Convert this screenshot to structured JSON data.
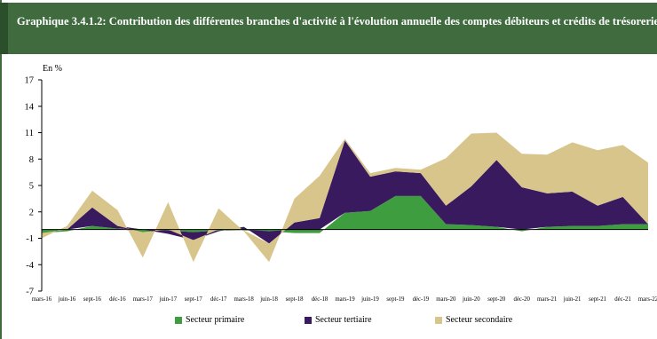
{
  "title": "Graphique 3.4.1.2: Contribution des différentes branches d'activité à l'évolution annuelle des comptes débiteurs et crédits de trésorerie",
  "chart_data": {
    "type": "area",
    "unit_label": "En %",
    "categories": [
      "mars-16",
      "juin-16",
      "sept-16",
      "déc-16",
      "mars-17",
      "juin-17",
      "sept-17",
      "déc-17",
      "mars-18",
      "juin-18",
      "sept-18",
      "déc-18",
      "mars-19",
      "juin-19",
      "sept-19",
      "déc-19",
      "mars-20",
      "juin-20",
      "sept-20",
      "déc-20",
      "mars-21",
      "juin-21",
      "sept-21",
      "déc-21",
      "mars-22"
    ],
    "ylim": [
      -7,
      17
    ],
    "yticks": [
      -7,
      -4,
      -1,
      2,
      5,
      8,
      11,
      14,
      17
    ],
    "series": [
      {
        "name": "Secteur primaire",
        "color": "#3e9d3e",
        "values": [
          -0.4,
          -0.2,
          0.4,
          0.1,
          -0.3,
          -0.1,
          -0.3,
          -0.1,
          -0.1,
          -0.2,
          -0.4,
          -0.4,
          1.9,
          2.1,
          3.8,
          3.8,
          0.6,
          0.5,
          0.3,
          -0.2,
          0.3,
          0.4,
          0.4,
          0.6,
          0.6
        ]
      },
      {
        "name": "Secteur tertiaire",
        "color": "#3a1a5e",
        "values": [
          0.0,
          0.0,
          2.1,
          0.3,
          0.0,
          -0.4,
          -0.9,
          -0.1,
          0.3,
          -1.4,
          0.8,
          1.3,
          8.2,
          3.9,
          2.8,
          2.6,
          2.1,
          4.4,
          7.6,
          4.8,
          3.8,
          3.9,
          2.3,
          3.1,
          0.0
        ]
      },
      {
        "name": "Secteur secondaire",
        "color": "#d8c58c",
        "values": [
          -0.6,
          0.4,
          1.9,
          1.8,
          -2.9,
          3.1,
          -2.5,
          2.4,
          -0.1,
          -2.1,
          2.7,
          4.8,
          0.2,
          0.4,
          0.4,
          0.4,
          5.4,
          6.0,
          3.1,
          3.8,
          4.4,
          5.6,
          6.3,
          5.9,
          7.0
        ]
      }
    ],
    "legend_position": "bottom"
  }
}
